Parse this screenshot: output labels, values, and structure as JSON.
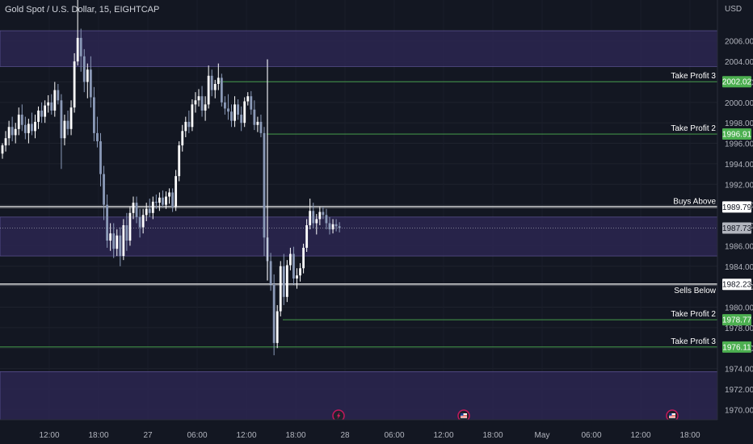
{
  "chart_data": {
    "type": "candlestick",
    "title": "Gold Spot / U.S. Dollar, 15, EIGHTCAP",
    "currency": "USD",
    "ylim": [
      1969,
      2010
    ],
    "y_ticks": [
      1970,
      1972,
      1974,
      1976,
      1978,
      1980,
      1982,
      1984,
      1986,
      1988,
      1990,
      1992,
      1994,
      1996,
      1998,
      2000,
      2002,
      2004,
      2006
    ],
    "x_ticks": [
      "12:00",
      "18:00",
      "27",
      "06:00",
      "12:00",
      "18:00",
      "28",
      "06:00",
      "12:00",
      "18:00",
      "May",
      "06:00",
      "12:00",
      "18:00"
    ],
    "current_price": "1987.73",
    "levels": [
      {
        "name": "Take Profit 3",
        "value": 2002.02,
        "label": "2002.02",
        "kind": "tp"
      },
      {
        "name": "Take Profit 2",
        "value": 1996.91,
        "label": "1996.91",
        "kind": "tp"
      },
      {
        "name": "Buys Above",
        "value": 1989.79,
        "label": "1989.79",
        "kind": "entry"
      },
      {
        "name": "Sells Below",
        "value": 1982.23,
        "label": "1982.23",
        "kind": "entry"
      },
      {
        "name": "Take Profit 2",
        "value": 1978.77,
        "label": "1978.77",
        "kind": "tp"
      },
      {
        "name": "Take Profit 3",
        "value": 1976.11,
        "label": "1976.11",
        "kind": "tp"
      }
    ],
    "zones": [
      {
        "from": 2003.5,
        "to": 2007.0
      },
      {
        "from": 1985.0,
        "to": 1988.8
      },
      {
        "from": 1969.0,
        "to": 1973.7
      }
    ],
    "events": [
      {
        "icon": "lightning-icon"
      },
      {
        "icon": "us-flag-icon"
      },
      {
        "icon": "us-flag-icon"
      }
    ],
    "series": [
      {
        "candles": [
          [
            1995,
            1996,
            1994.5,
            1995.8
          ],
          [
            1995.8,
            1997.2,
            1995.2,
            1996.5
          ],
          [
            1996.5,
            1998.2,
            1995.8,
            1997.6
          ],
          [
            1997.6,
            1998.6,
            1996.2,
            1996.8
          ],
          [
            1996.8,
            1998,
            1996,
            1997.4
          ],
          [
            1997.4,
            1999.5,
            1996.8,
            1998.8
          ],
          [
            1998.8,
            1999.8,
            1997.2,
            1997.8
          ],
          [
            1997.8,
            1998.6,
            1996.4,
            1997
          ],
          [
            1997,
            1998.4,
            1996,
            1997.9
          ],
          [
            1997.9,
            1999,
            1996.8,
            1997.2
          ],
          [
            1997.2,
            1998.8,
            1996.5,
            1998.1
          ],
          [
            1998.1,
            1999.6,
            1997.4,
            1999.2
          ],
          [
            1999.2,
            2000,
            1998,
            1998.6
          ],
          [
            1998.6,
            2000.2,
            1998,
            1999.7
          ],
          [
            1999.7,
            2000.7,
            1999,
            2000
          ],
          [
            2000,
            2000.8,
            1998.8,
            1999.2
          ],
          [
            1999.2,
            2002,
            1998.6,
            2001.2
          ],
          [
            2001.2,
            2001.8,
            1999.8,
            2000.2
          ],
          [
            2000.2,
            2000.8,
            1993.5,
            1996.5
          ],
          [
            1996.5,
            1998.8,
            1995.8,
            1998.2
          ],
          [
            1998.2,
            1999.2,
            1996.8,
            1997.4
          ],
          [
            1997.4,
            2000.2,
            1996.8,
            1999.5
          ],
          [
            1999.5,
            2004.8,
            1999,
            2004
          ],
          [
            2004,
            2010,
            2003.6,
            2006.3
          ],
          [
            2006.3,
            2007.2,
            2003,
            2004.5
          ],
          [
            2004.5,
            2005.2,
            2001,
            2002
          ],
          [
            2002,
            2003.8,
            2000.4,
            2003.2
          ],
          [
            2003.2,
            2004.5,
            1999.5,
            2000.5
          ],
          [
            2000.5,
            2001.5,
            1996.2,
            1997
          ],
          [
            1997,
            1998.6,
            1995.6,
            1996.2
          ],
          [
            1996.2,
            1997,
            1991.8,
            1993
          ],
          [
            1993,
            1993.8,
            1988.5,
            1990
          ],
          [
            1990,
            1991,
            1985.8,
            1986.5
          ],
          [
            1986.5,
            1988.2,
            1985.5,
            1987.2
          ],
          [
            1987.2,
            1988.2,
            1984.8,
            1985.7
          ],
          [
            1985.7,
            1987.6,
            1985,
            1987
          ],
          [
            1987,
            1987.8,
            1984,
            1985
          ],
          [
            1985,
            1988.6,
            1984.6,
            1988
          ],
          [
            1988,
            1989.2,
            1985.5,
            1986.5
          ],
          [
            1986.5,
            1989.8,
            1986,
            1989.2
          ],
          [
            1989.2,
            1990.8,
            1988.6,
            1990.2
          ],
          [
            1990.2,
            1990.8,
            1988.2,
            1988.8
          ],
          [
            1988.8,
            1989.6,
            1986.8,
            1987.8
          ],
          [
            1987.8,
            1989.6,
            1987.2,
            1989
          ],
          [
            1989,
            1990.2,
            1988.4,
            1989.6
          ],
          [
            1989.6,
            1990.6,
            1988.8,
            1989.2
          ],
          [
            1989.2,
            1990.8,
            1988.6,
            1990.3
          ],
          [
            1990.3,
            1991,
            1989.6,
            1990.2
          ],
          [
            1990.2,
            1991.2,
            1989.4,
            1990.7
          ],
          [
            1990.7,
            1991.4,
            1989.8,
            1990
          ],
          [
            1990,
            1991.3,
            1989.6,
            1990.8
          ],
          [
            1990.8,
            1991.6,
            1990.1,
            1991.2
          ],
          [
            1991.2,
            1991.6,
            1989.3,
            1989.8
          ],
          [
            1989.8,
            1993.4,
            1989.4,
            1992.8
          ],
          [
            1992.8,
            1996.2,
            1992.3,
            1995.8
          ],
          [
            1995.8,
            1997.8,
            1995.2,
            1997.2
          ],
          [
            1997.2,
            1998.6,
            1996.6,
            1998.1
          ],
          [
            1998.1,
            1999.2,
            1997,
            1997.6
          ],
          [
            1997.6,
            2000.3,
            1997.2,
            1999.8
          ],
          [
            1999.8,
            2001,
            1999,
            2000.2
          ],
          [
            2000.2,
            2001.3,
            1999.6,
            2000.6
          ],
          [
            2000.6,
            2001.6,
            1998.6,
            1999.2
          ],
          [
            1999.2,
            2000.6,
            1998.2,
            1999.8
          ],
          [
            1999.8,
            2003.6,
            1999.4,
            2002.6
          ],
          [
            2002.6,
            2003.2,
            2000.6,
            2001.2
          ],
          [
            2001.2,
            2002.2,
            2000.4,
            2001.8
          ],
          [
            2001.8,
            2003.8,
            2001.2,
            2002.4
          ],
          [
            2002.4,
            2002.8,
            1999.6,
            2000
          ],
          [
            2000,
            2000.6,
            1998.8,
            1999.4
          ],
          [
            1999.4,
            2000.8,
            1998.3,
            1999.1
          ],
          [
            1999.1,
            1999.8,
            1997.6,
            1998.2
          ],
          [
            1998.2,
            2000.6,
            1997.6,
            1999.8
          ],
          [
            1999.8,
            2000.3,
            1998.3,
            1998.8
          ],
          [
            1998.8,
            1999.6,
            1997.2,
            1998
          ],
          [
            1998,
            2000.5,
            1997.6,
            2000.1
          ],
          [
            2000.1,
            2001,
            1999.7,
            2000.6
          ],
          [
            2000.6,
            2001.1,
            1998.8,
            1999.3
          ],
          [
            1999.3,
            2000.2,
            1997.3,
            1997.8
          ],
          [
            1997.8,
            1998.6,
            1997.1,
            1998.1
          ],
          [
            1998.1,
            1998.8,
            1996.6,
            1997
          ],
          [
            1997,
            1997.6,
            1985,
            1986.8
          ],
          [
            1986.8,
            1987.6,
            1983.8,
            1984.5
          ],
          [
            1984.5,
            1985.3,
            1981.6,
            1982.2
          ],
          [
            1982.2,
            1983.2,
            1975.3,
            1976.5
          ],
          [
            1976.5,
            1980.2,
            1976,
            1979.6
          ],
          [
            1979.6,
            1984.5,
            1979.1,
            1984
          ],
          [
            1984,
            1985.2,
            1980.2,
            1981
          ],
          [
            1981,
            1984.6,
            1980.5,
            1984.1
          ],
          [
            1984.1,
            1985.8,
            1983.6,
            1985.2
          ],
          [
            1985.2,
            1985.9,
            1982.2,
            1982.8
          ],
          [
            1982.8,
            1983.8,
            1981.8,
            1983.1
          ],
          [
            1983.1,
            1984.3,
            1982.5,
            1983.8
          ],
          [
            1983.8,
            1986.2,
            1983.3,
            1985.8
          ],
          [
            1985.8,
            1988.6,
            1985.4,
            1988
          ],
          [
            1988,
            1990.6,
            1987.6,
            1989.4
          ],
          [
            1989.4,
            1990.2,
            1987.7,
            1988.2
          ],
          [
            1988.2,
            1989.1,
            1987.1,
            1988.6
          ],
          [
            1988.6,
            1989.8,
            1988,
            1989.3
          ],
          [
            1989.3,
            1989.8,
            1988.6,
            1989
          ],
          [
            1989,
            1989.6,
            1987.6,
            1988.2
          ],
          [
            1988.2,
            1988.8,
            1987.1,
            1987.6
          ],
          [
            1987.6,
            1988.6,
            1987.2,
            1988.1
          ],
          [
            1988.1,
            1988.6,
            1987.4,
            1987.9
          ],
          [
            1987.9,
            1988.3,
            1987.3,
            1987.73
          ]
        ]
      }
    ]
  }
}
